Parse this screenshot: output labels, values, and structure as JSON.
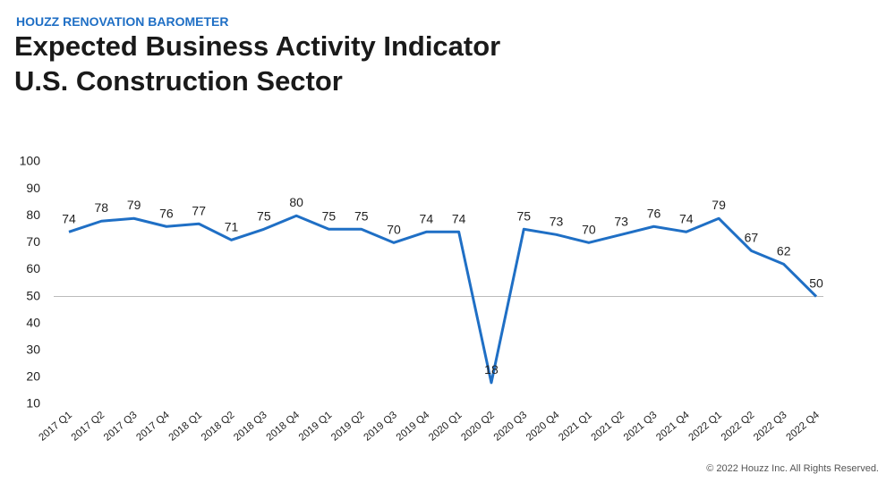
{
  "chart_data": {
    "type": "line",
    "kicker": "HOUZZ RENOVATION BAROMETER",
    "title": "Expected Business Activity Indicator",
    "subtitle": "U.S. Construction Sector",
    "footer": "© 2022 Houzz Inc. All Rights Reserved.",
    "categories": [
      "2017 Q1",
      "2017 Q2",
      "2017 Q3",
      "2017 Q4",
      "2018 Q1",
      "2018 Q2",
      "2018 Q3",
      "2018 Q4",
      "2019 Q1",
      "2019 Q2",
      "2019 Q3",
      "2019 Q4",
      "2020 Q1",
      "2020 Q2",
      "2020 Q3",
      "2020 Q4",
      "2021 Q1",
      "2021 Q2",
      "2021 Q3",
      "2021 Q4",
      "2022 Q1",
      "2022 Q2",
      "2022 Q3",
      "2022 Q4"
    ],
    "series": [
      {
        "color": "#1f6fc5",
        "values": [
          74,
          78,
          79,
          76,
          77,
          71,
          75,
          80,
          75,
          75,
          70,
          74,
          74,
          18,
          75,
          73,
          70,
          73,
          76,
          74,
          79,
          67,
          62,
          50
        ]
      }
    ],
    "ylim": [
      10,
      100
    ],
    "yticks": [
      10,
      20,
      30,
      40,
      50,
      60,
      70,
      80,
      90,
      100
    ],
    "reference_line": 50,
    "grid": false
  }
}
